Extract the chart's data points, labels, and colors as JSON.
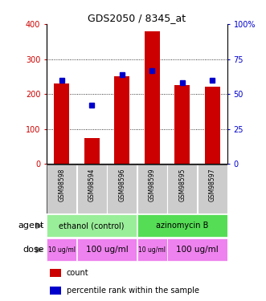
{
  "title": "GDS2050 / 8345_at",
  "samples": [
    "GSM98598",
    "GSM98594",
    "GSM98596",
    "GSM98599",
    "GSM98595",
    "GSM98597"
  ],
  "counts": [
    230,
    75,
    250,
    380,
    225,
    220
  ],
  "percentiles": [
    60,
    42,
    64,
    67,
    58,
    60
  ],
  "ylim_left": [
    0,
    400
  ],
  "ylim_right": [
    0,
    100
  ],
  "yticks_left": [
    0,
    100,
    200,
    300,
    400
  ],
  "yticks_right": [
    0,
    25,
    50,
    75,
    100
  ],
  "bar_color": "#cc0000",
  "dot_color": "#0000cc",
  "agent_labels": [
    {
      "text": "ethanol (control)",
      "start": 0,
      "end": 3,
      "color": "#99ee99"
    },
    {
      "text": "azinomycin B",
      "start": 3,
      "end": 6,
      "color": "#55dd55"
    }
  ],
  "dose_labels": [
    {
      "text": "10 ug/ml",
      "start": 0,
      "end": 1,
      "color": "#ee82ee",
      "fontsize": 5.5
    },
    {
      "text": "100 ug/ml",
      "start": 1,
      "end": 3,
      "color": "#ee82ee",
      "fontsize": 7.5
    },
    {
      "text": "10 ug/ml",
      "start": 3,
      "end": 4,
      "color": "#ee82ee",
      "fontsize": 5.5
    },
    {
      "text": "100 ug/ml",
      "start": 4,
      "end": 6,
      "color": "#ee82ee",
      "fontsize": 7.5
    }
  ],
  "sample_bg_color": "#cccccc",
  "legend_count_color": "#cc0000",
  "legend_percentile_color": "#0000cc",
  "bar_width": 0.5,
  "gridline_color": "#555555",
  "gridline_style": "dotted"
}
